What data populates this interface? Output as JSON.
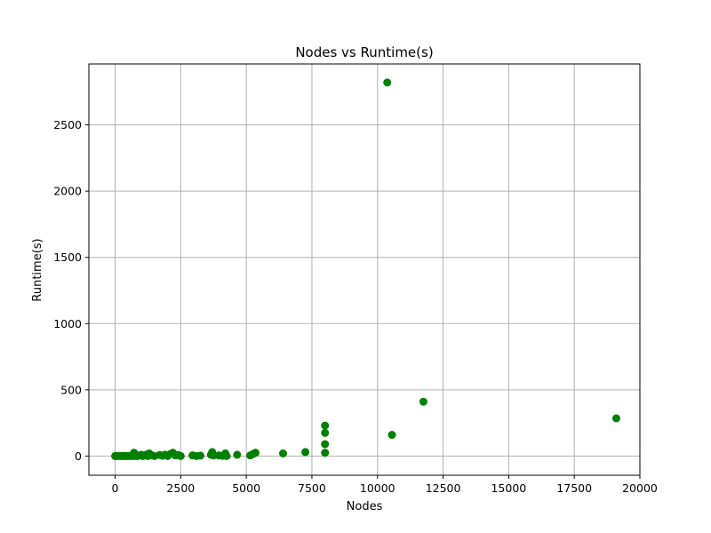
{
  "chart_data": {
    "type": "scatter",
    "title": "Nodes vs Runtime(s)",
    "xlabel": "Nodes",
    "ylabel": "Runtime(s)",
    "xlim": [
      -1000,
      20000
    ],
    "ylim": [
      -145,
      2960
    ],
    "xticks": [
      0,
      2500,
      5000,
      7500,
      10000,
      12500,
      15000,
      17500,
      20000
    ],
    "yticks": [
      0,
      500,
      1000,
      1500,
      2000,
      2500
    ],
    "grid": true,
    "marker_color": "#008000",
    "points": [
      {
        "x": 0,
        "y": 0
      },
      {
        "x": 40,
        "y": 1
      },
      {
        "x": 80,
        "y": 0
      },
      {
        "x": 120,
        "y": 2
      },
      {
        "x": 160,
        "y": 0
      },
      {
        "x": 200,
        "y": 1
      },
      {
        "x": 240,
        "y": 0
      },
      {
        "x": 280,
        "y": 1
      },
      {
        "x": 320,
        "y": 0
      },
      {
        "x": 360,
        "y": 2
      },
      {
        "x": 400,
        "y": 0
      },
      {
        "x": 440,
        "y": 1
      },
      {
        "x": 480,
        "y": 0
      },
      {
        "x": 520,
        "y": 1
      },
      {
        "x": 560,
        "y": 0
      },
      {
        "x": 600,
        "y": 2
      },
      {
        "x": 640,
        "y": 0
      },
      {
        "x": 680,
        "y": 1
      },
      {
        "x": 720,
        "y": 25
      },
      {
        "x": 760,
        "y": 0
      },
      {
        "x": 800,
        "y": 1
      },
      {
        "x": 840,
        "y": 0
      },
      {
        "x": 880,
        "y": 2
      },
      {
        "x": 920,
        "y": 5
      },
      {
        "x": 1000,
        "y": 10
      },
      {
        "x": 1050,
        "y": 0
      },
      {
        "x": 1100,
        "y": 3
      },
      {
        "x": 1200,
        "y": 12
      },
      {
        "x": 1250,
        "y": 0
      },
      {
        "x": 1300,
        "y": 20
      },
      {
        "x": 1400,
        "y": 5
      },
      {
        "x": 1500,
        "y": 0
      },
      {
        "x": 1700,
        "y": 8
      },
      {
        "x": 1800,
        "y": 2
      },
      {
        "x": 1900,
        "y": 10
      },
      {
        "x": 2000,
        "y": 0
      },
      {
        "x": 2100,
        "y": 15
      },
      {
        "x": 2200,
        "y": 25
      },
      {
        "x": 2300,
        "y": 5
      },
      {
        "x": 2400,
        "y": 8
      },
      {
        "x": 2500,
        "y": 0
      },
      {
        "x": 2950,
        "y": 5
      },
      {
        "x": 3100,
        "y": 0
      },
      {
        "x": 3250,
        "y": 3
      },
      {
        "x": 3650,
        "y": 10
      },
      {
        "x": 3700,
        "y": 30
      },
      {
        "x": 3750,
        "y": 5
      },
      {
        "x": 3950,
        "y": 5
      },
      {
        "x": 4100,
        "y": 2
      },
      {
        "x": 4200,
        "y": 20
      },
      {
        "x": 4250,
        "y": 0
      },
      {
        "x": 4650,
        "y": 10
      },
      {
        "x": 5150,
        "y": 5
      },
      {
        "x": 5250,
        "y": 15
      },
      {
        "x": 5350,
        "y": 25
      },
      {
        "x": 6400,
        "y": 20
      },
      {
        "x": 7250,
        "y": 30
      },
      {
        "x": 8000,
        "y": 230
      },
      {
        "x": 8000,
        "y": 175
      },
      {
        "x": 8000,
        "y": 90
      },
      {
        "x": 8000,
        "y": 25
      },
      {
        "x": 10370,
        "y": 2820
      },
      {
        "x": 10550,
        "y": 160
      },
      {
        "x": 11750,
        "y": 410
      },
      {
        "x": 19100,
        "y": 285
      }
    ]
  }
}
